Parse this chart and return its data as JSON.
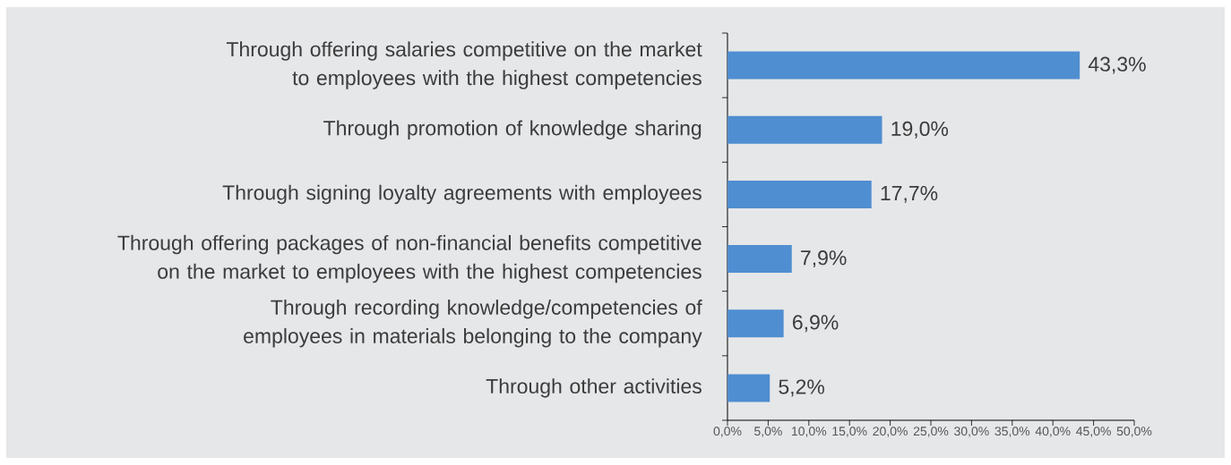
{
  "chart_data": {
    "type": "bar",
    "orientation": "horizontal",
    "categories": [
      "Through offering salaries competitive on the market to employees with the highest competencies",
      "Through promotion of knowledge sharing",
      "Through signing loyalty agreements with employees",
      "Through offering packages of non-financial benefits competitive on the market to employees with the highest competencies",
      "Through recording knowledge/competencies of employees in materials belonging to the company",
      "Through other activities"
    ],
    "values": [
      43.3,
      19.0,
      17.7,
      7.9,
      6.9,
      5.2
    ],
    "value_labels": [
      "43,3%",
      "19,0%",
      "17,7%",
      "7,9%",
      "6,9%",
      "5,2%"
    ],
    "color": "#4f8ed0",
    "xlim": [
      0,
      50
    ],
    "xticks": [
      {
        "value": 0,
        "label": "0,0%"
      },
      {
        "value": 5,
        "label": "5,0%"
      },
      {
        "value": 10,
        "label": "10,0%"
      },
      {
        "value": 15,
        "label": "15,0%"
      },
      {
        "value": 20,
        "label": "20,0%"
      },
      {
        "value": 25,
        "label": "25,0%"
      },
      {
        "value": 30,
        "label": "30,0%"
      },
      {
        "value": 35,
        "label": "35,0%"
      },
      {
        "value": 40,
        "label": "40,0%"
      },
      {
        "value": 45,
        "label": "45,0%"
      },
      {
        "value": 50,
        "label": "50,0%"
      }
    ]
  }
}
